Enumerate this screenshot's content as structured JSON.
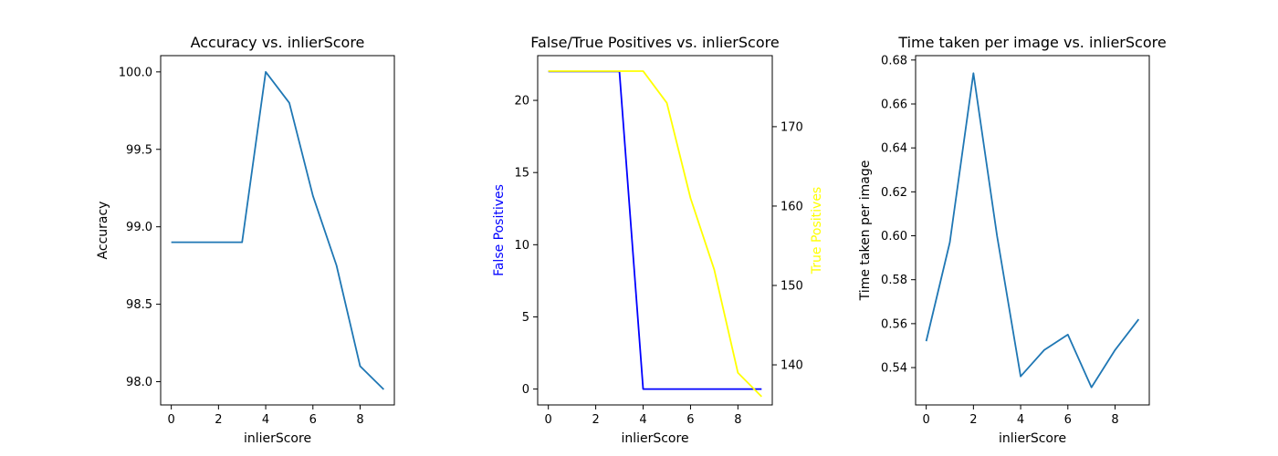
{
  "chart_data": [
    {
      "type": "line",
      "title": "Accuracy vs. inlierScore",
      "xlabel": "inlierScore",
      "ylabel": "Accuracy",
      "xlim": [
        -0.45,
        9.45
      ],
      "ylim": [
        97.85,
        100.105
      ],
      "xticks": [
        0,
        2,
        4,
        6,
        8
      ],
      "yticks": [
        98.0,
        98.5,
        99.0,
        99.5,
        100.0
      ],
      "ytick_labels": [
        "98.0",
        "98.5",
        "99.0",
        "99.5",
        "100.0"
      ],
      "x": [
        0,
        1,
        2,
        3,
        4,
        5,
        6,
        7,
        8,
        9
      ],
      "series": [
        {
          "values": [
            98.9,
            98.9,
            98.9,
            98.9,
            100.0,
            99.8,
            99.2,
            98.75,
            98.1,
            97.95
          ],
          "color": "#1f77b4"
        }
      ]
    },
    {
      "type": "line",
      "title": "False/True Positives vs. inlierScore",
      "xlabel": "inlierScore",
      "ylabel": "False Positives",
      "ylabel_color": "#0000ff",
      "y2label": "True Positives",
      "y2label_color": "#ffff00",
      "xlim": [
        -0.45,
        9.45
      ],
      "ylim": [
        -1.1,
        23.1
      ],
      "y2lim": [
        134.95,
        178.95
      ],
      "xticks": [
        0,
        2,
        4,
        6,
        8
      ],
      "yticks": [
        0,
        5,
        10,
        15,
        20
      ],
      "ytick_labels": [
        "0",
        "5",
        "10",
        "15",
        "20"
      ],
      "y2ticks": [
        140,
        150,
        160,
        170
      ],
      "y2tick_labels": [
        "140",
        "150",
        "160",
        "170"
      ],
      "x": [
        0,
        1,
        2,
        3,
        4,
        5,
        6,
        7,
        8,
        9
      ],
      "series": [
        {
          "values": [
            22,
            22,
            22,
            22,
            0,
            0,
            0,
            0,
            0,
            0
          ],
          "color": "#0000ff",
          "axis": "left"
        },
        {
          "values": [
            177,
            177,
            177,
            177,
            177,
            173,
            161,
            152,
            139,
            136
          ],
          "color": "#ffff00",
          "axis": "right"
        }
      ]
    },
    {
      "type": "line",
      "title": "Time taken per image vs. inlierScore",
      "xlabel": "inlierScore",
      "ylabel": "Time taken per image",
      "xlim": [
        -0.45,
        9.45
      ],
      "ylim": [
        0.523,
        0.682
      ],
      "xticks": [
        0,
        2,
        4,
        6,
        8
      ],
      "yticks": [
        0.54,
        0.56,
        0.58,
        0.6,
        0.62,
        0.64,
        0.66,
        0.68
      ],
      "ytick_labels": [
        "0.54",
        "0.56",
        "0.58",
        "0.60",
        "0.62",
        "0.64",
        "0.66",
        "0.68"
      ],
      "x": [
        0,
        1,
        2,
        3,
        4,
        5,
        6,
        7,
        8,
        9
      ],
      "series": [
        {
          "values": [
            0.552,
            0.597,
            0.674,
            0.6,
            0.536,
            0.548,
            0.555,
            0.531,
            0.548,
            0.562
          ],
          "color": "#1f77b4"
        }
      ]
    }
  ]
}
